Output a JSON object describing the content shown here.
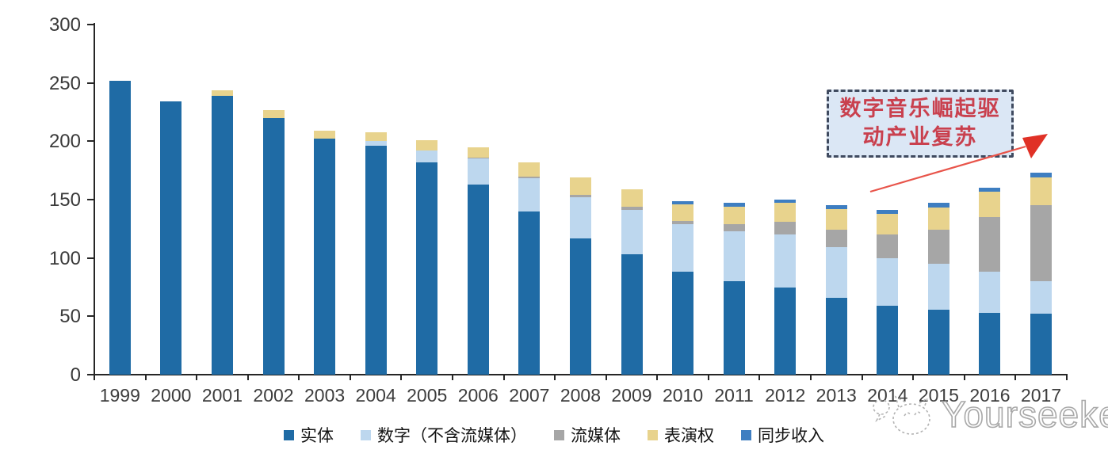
{
  "chart_data": {
    "type": "bar",
    "stacked": true,
    "title": "",
    "xlabel": "",
    "ylabel": "",
    "categories": [
      "1999",
      "2000",
      "2001",
      "2002",
      "2003",
      "2004",
      "2005",
      "2006",
      "2007",
      "2008",
      "2009",
      "2010",
      "2011",
      "2012",
      "2013",
      "2014",
      "2015",
      "2016",
      "2017"
    ],
    "series": [
      {
        "name": "实体",
        "color": "#1F6BA5",
        "values": [
          252,
          234,
          239,
          220,
          202,
          196,
          182,
          163,
          140,
          117,
          103,
          88,
          80,
          75,
          66,
          59,
          56,
          53,
          52
        ]
      },
      {
        "name": "数字（不含流媒体）",
        "color": "#BDD7EE",
        "values": [
          0,
          0,
          0,
          0,
          0,
          4,
          10,
          22,
          28,
          35,
          38,
          41,
          43,
          45,
          43,
          41,
          39,
          35,
          28
        ]
      },
      {
        "name": "流媒体",
        "color": "#A6A6A6",
        "values": [
          0,
          0,
          0,
          0,
          0,
          0,
          0,
          1,
          2,
          2,
          3,
          3,
          6,
          11,
          15,
          20,
          29,
          47,
          65
        ]
      },
      {
        "name": "表演权",
        "color": "#E8D38D",
        "values": [
          0,
          0,
          5,
          7,
          7,
          8,
          9,
          9,
          12,
          15,
          15,
          14,
          15,
          16,
          18,
          18,
          19,
          22,
          24
        ]
      },
      {
        "name": "同步收入",
        "color": "#3E7EC1",
        "values": [
          0,
          0,
          0,
          0,
          0,
          0,
          0,
          0,
          0,
          0,
          0,
          3,
          3,
          3,
          3,
          3,
          4,
          3,
          4
        ]
      }
    ],
    "totals": [
      252,
      234,
      244,
      227,
      209,
      208,
      201,
      195,
      182,
      169,
      159,
      149,
      147,
      150,
      145,
      141,
      147,
      160,
      173
    ],
    "ylim": [
      0,
      300
    ],
    "yticks": [
      0,
      50,
      100,
      150,
      200,
      250,
      300
    ],
    "grid": false,
    "legend_position": "bottom"
  },
  "annotation": {
    "line1": "数字音乐崛起驱",
    "line2": "动产业复苏",
    "text_color": "#c9404e",
    "box_fill": "#dbe7f5",
    "box_border": "#3f4a5f",
    "arrow_color": "#e8544a"
  },
  "watermark": {
    "text": "Yourseeker"
  }
}
